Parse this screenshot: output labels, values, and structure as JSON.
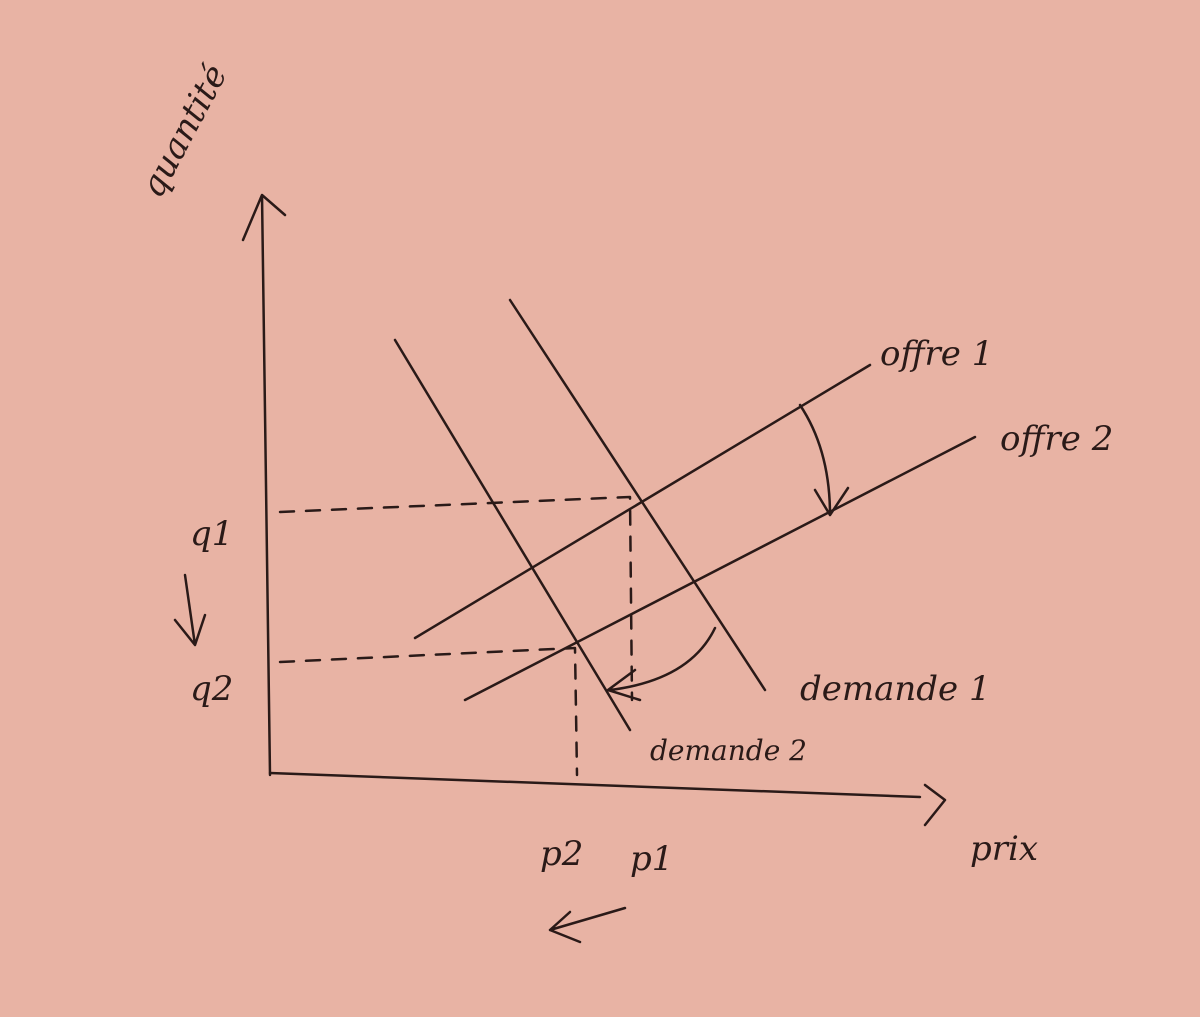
{
  "axes": {
    "y_label": "quantité",
    "x_label": "prix"
  },
  "ticks": {
    "q1": "q1",
    "q2": "q2",
    "p1": "p1",
    "p2": "p2"
  },
  "curves": {
    "offre_1": "offre 1",
    "offre_2": "offre 2",
    "demande_1": "demande 1",
    "demande_2": "demande 2"
  }
}
